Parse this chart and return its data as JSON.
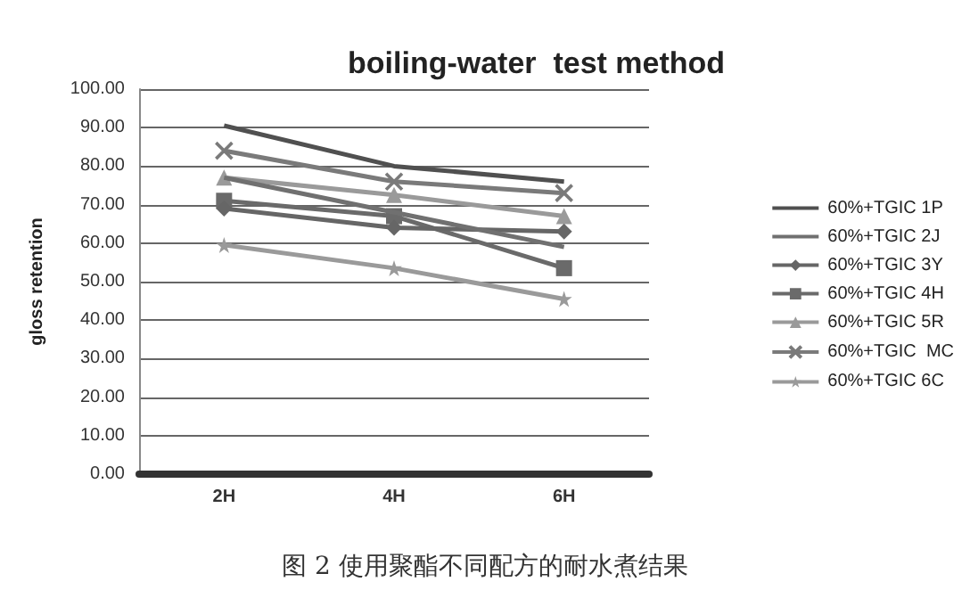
{
  "chart_data": {
    "type": "line",
    "title": "boiling-water  test method",
    "ylabel": "gloss retention",
    "categories": [
      "2H",
      "4H",
      "6H"
    ],
    "series": [
      {
        "name": "60%+TGIC 1P",
        "color": "#505050",
        "marker": "none",
        "values": [
          90.5,
          80,
          76
        ]
      },
      {
        "name": "60%+TGIC 2J",
        "color": "#707070",
        "marker": "none",
        "values": [
          77,
          68,
          59
        ]
      },
      {
        "name": "60%+TGIC 3Y",
        "color": "#666666",
        "marker": "diamond",
        "values": [
          69,
          64,
          63
        ]
      },
      {
        "name": "60%+TGIC 4H",
        "color": "#6a6a6a",
        "marker": "square",
        "values": [
          71,
          67,
          53.5
        ]
      },
      {
        "name": "60%+TGIC 5R",
        "color": "#9a9a9a",
        "marker": "triangle",
        "values": [
          77,
          72.5,
          67
        ]
      },
      {
        "name": "60%+TGIC  MC",
        "color": "#7a7a7a",
        "marker": "cross",
        "values": [
          84,
          76,
          73
        ]
      },
      {
        "name": "60%+TGIC 6C",
        "color": "#9a9a9a",
        "marker": "star",
        "values": [
          59.5,
          53.5,
          45.5
        ]
      }
    ],
    "ylim": [
      0,
      100
    ],
    "yticks": [
      {
        "value": 0,
        "label": "0.00"
      },
      {
        "value": 10,
        "label": "10.00"
      },
      {
        "value": 20,
        "label": "20.00"
      },
      {
        "value": 30,
        "label": "30.00"
      },
      {
        "value": 40,
        "label": "40.00"
      },
      {
        "value": 50,
        "label": "50.00"
      },
      {
        "value": 60,
        "label": "60.00"
      },
      {
        "value": 70,
        "label": "70.00"
      },
      {
        "value": 80,
        "label": "80.00"
      },
      {
        "value": 90,
        "label": "90.00"
      },
      {
        "value": 100,
        "label": "100.00"
      }
    ],
    "grid": "y",
    "legend": "right",
    "line_style": "solid",
    "annotations": [
      "图 2 使用聚酯不同配方的耐水煮结果"
    ]
  }
}
